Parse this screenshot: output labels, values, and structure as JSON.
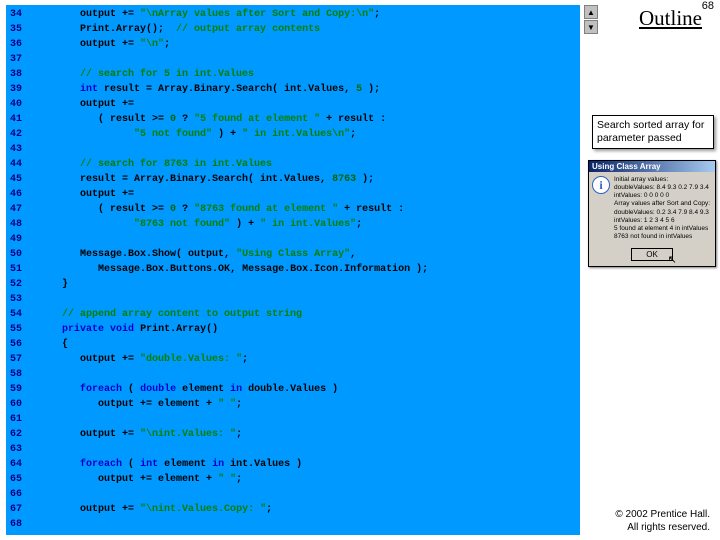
{
  "page_number": "68",
  "outline_heading": "Outline",
  "callout_text": "Search sorted array for parameter passed",
  "copyright_line1": "© 2002 Prentice Hall.",
  "copyright_line2": "All rights reserved.",
  "dialog": {
    "title": "Using Class Array",
    "line1": "Initial array values:",
    "line2": "doubleValues: 8.4 9.3 0.2 7.9 3.4",
    "line3": "intValues: 0 0 0 0 0",
    "line4": "",
    "line5": "Array values after Sort and Copy:",
    "line6": "doubleValues: 0.2 3.4 7.9 8.4 9.3",
    "line7": "intValues: 1 2 3 4 5 6",
    "line8": "",
    "line9": "5 found at element 4 in intValues",
    "line10": "8763 not found in intValues",
    "button": "OK"
  },
  "scroll_up": "▲",
  "scroll_down": "▼",
  "line_numbers": [
    "34",
    "35",
    "36",
    "37",
    "38",
    "39",
    "40",
    "41",
    "42",
    "43",
    "44",
    "45",
    "46",
    "47",
    "48",
    "49",
    "50",
    "51",
    "52",
    "53",
    "54",
    "55",
    "56",
    "57",
    "58",
    "59",
    "60",
    "61",
    "62",
    "63",
    "64",
    "65",
    "66",
    "67",
    "68"
  ]
}
